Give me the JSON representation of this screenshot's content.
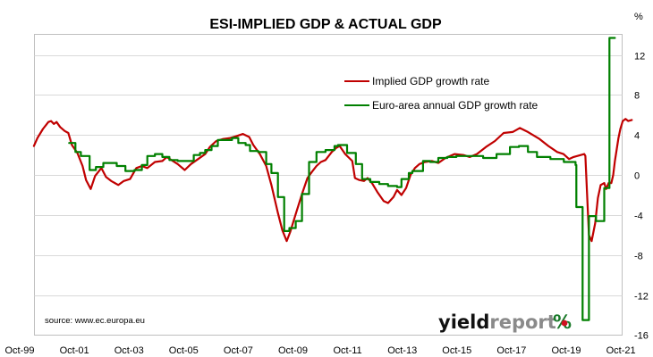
{
  "chart_data": {
    "type": "line",
    "title": "ESI-IMPLIED GDP & ACTUAL GDP",
    "ylabel": "%",
    "xlabel": "",
    "ylim": [
      -16,
      16
    ],
    "yticks": [
      12,
      8,
      4,
      0,
      -4,
      -8,
      -12,
      -16
    ],
    "ytick_labels": [
      "12",
      "8",
      "4",
      "0",
      "-4",
      "-8",
      "-12",
      "-16"
    ],
    "y_axis_side": "right",
    "x_tick_labels": [
      "Oct-99",
      "Oct-01",
      "Oct-03",
      "Oct-05",
      "Oct-07",
      "Oct-09",
      "Oct-11",
      "Oct-13",
      "Oct-15",
      "Oct-17",
      "Oct-19",
      "Oct-21"
    ],
    "x_tick_years": [
      1999.75,
      2001.75,
      2003.75,
      2005.75,
      2007.75,
      2009.75,
      2011.75,
      2013.75,
      2015.75,
      2017.75,
      2019.75,
      2021.75
    ],
    "xlim": [
      2000.27,
      2021.8
    ],
    "grid": true,
    "legend_placement": "top-center",
    "annotations": [
      "source: www.ec.europa.eu"
    ],
    "series": [
      {
        "name": "Implied GDP growth rate",
        "color": "#c00000",
        "points": [
          [
            2000.27,
            2.9
          ],
          [
            2000.4,
            3.7
          ],
          [
            2000.6,
            4.6
          ],
          [
            2000.8,
            5.3
          ],
          [
            2000.9,
            5.4
          ],
          [
            2001.0,
            5.1
          ],
          [
            2001.1,
            5.3
          ],
          [
            2001.23,
            4.8
          ],
          [
            2001.4,
            4.4
          ],
          [
            2001.53,
            4.2
          ],
          [
            2001.66,
            3.0
          ],
          [
            2001.86,
            2.2
          ],
          [
            2002.05,
            0.9
          ],
          [
            2002.18,
            -0.5
          ],
          [
            2002.35,
            -1.4
          ],
          [
            2002.51,
            -0.1
          ],
          [
            2002.74,
            0.7
          ],
          [
            2002.91,
            -0.2
          ],
          [
            2003.1,
            -0.6
          ],
          [
            2003.36,
            -1.0
          ],
          [
            2003.56,
            -0.6
          ],
          [
            2003.79,
            -0.4
          ],
          [
            2004.02,
            0.7
          ],
          [
            2004.22,
            0.9
          ],
          [
            2004.42,
            0.7
          ],
          [
            2004.7,
            1.3
          ],
          [
            2004.97,
            1.4
          ],
          [
            2005.13,
            1.8
          ],
          [
            2005.3,
            1.5
          ],
          [
            2005.53,
            1.1
          ],
          [
            2005.79,
            0.5
          ],
          [
            2006.02,
            1.1
          ],
          [
            2006.28,
            1.6
          ],
          [
            2006.54,
            2.1
          ],
          [
            2006.71,
            2.8
          ],
          [
            2006.94,
            3.4
          ],
          [
            2007.2,
            3.6
          ],
          [
            2007.46,
            3.7
          ],
          [
            2007.69,
            3.9
          ],
          [
            2007.92,
            4.1
          ],
          [
            2008.15,
            3.8
          ],
          [
            2008.3,
            3.0
          ],
          [
            2008.54,
            2.1
          ],
          [
            2008.77,
            0.9
          ],
          [
            2008.96,
            -1.0
          ],
          [
            2009.2,
            -3.8
          ],
          [
            2009.36,
            -5.5
          ],
          [
            2009.52,
            -6.6
          ],
          [
            2009.65,
            -5.7
          ],
          [
            2009.85,
            -3.9
          ],
          [
            2010.08,
            -1.9
          ],
          [
            2010.28,
            -0.3
          ],
          [
            2010.44,
            0.3
          ],
          [
            2010.61,
            0.9
          ],
          [
            2010.77,
            1.3
          ],
          [
            2010.94,
            1.5
          ],
          [
            2011.17,
            2.3
          ],
          [
            2011.33,
            2.7
          ],
          [
            2011.46,
            2.9
          ],
          [
            2011.66,
            2.1
          ],
          [
            2011.92,
            1.4
          ],
          [
            2012.02,
            -0.3
          ],
          [
            2012.18,
            -0.5
          ],
          [
            2012.35,
            -0.6
          ],
          [
            2012.48,
            -0.3
          ],
          [
            2012.64,
            -0.8
          ],
          [
            2012.84,
            -1.7
          ],
          [
            2013.07,
            -2.6
          ],
          [
            2013.23,
            -2.8
          ],
          [
            2013.43,
            -2.2
          ],
          [
            2013.56,
            -1.5
          ],
          [
            2013.72,
            -2.0
          ],
          [
            2013.89,
            -1.3
          ],
          [
            2014.05,
            0.0
          ],
          [
            2014.21,
            0.7
          ],
          [
            2014.38,
            1.1
          ],
          [
            2014.58,
            1.3
          ],
          [
            2014.84,
            1.4
          ],
          [
            2015.07,
            1.2
          ],
          [
            2015.33,
            1.7
          ],
          [
            2015.66,
            2.1
          ],
          [
            2015.99,
            2.0
          ],
          [
            2016.22,
            1.8
          ],
          [
            2016.48,
            2.1
          ],
          [
            2016.81,
            2.8
          ],
          [
            2017.14,
            3.4
          ],
          [
            2017.46,
            4.2
          ],
          [
            2017.79,
            4.3
          ],
          [
            2018.05,
            4.7
          ],
          [
            2018.35,
            4.3
          ],
          [
            2018.77,
            3.6
          ],
          [
            2019.1,
            2.9
          ],
          [
            2019.42,
            2.3
          ],
          [
            2019.65,
            2.1
          ],
          [
            2019.85,
            1.6
          ],
          [
            2020.02,
            1.8
          ],
          [
            2020.41,
            2.1
          ],
          [
            2020.45,
            1.9
          ],
          [
            2020.51,
            -1.7
          ],
          [
            2020.58,
            -6.0
          ],
          [
            2020.68,
            -6.6
          ],
          [
            2020.81,
            -4.8
          ],
          [
            2020.91,
            -2.3
          ],
          [
            2021.01,
            -1.0
          ],
          [
            2021.14,
            -0.8
          ],
          [
            2021.21,
            -1.4
          ],
          [
            2021.3,
            -0.8
          ],
          [
            2021.4,
            -0.8
          ],
          [
            2021.47,
            0.0
          ],
          [
            2021.53,
            1.4
          ],
          [
            2021.66,
            3.7
          ],
          [
            2021.73,
            4.6
          ],
          [
            2021.82,
            5.4
          ],
          [
            2021.92,
            5.6
          ],
          [
            2022.02,
            5.4
          ],
          [
            2022.15,
            5.5
          ]
        ]
      },
      {
        "name": "Euro-area annual GDP growth rate",
        "color": "#008000",
        "step": true,
        "points": [
          [
            2001.56,
            3.2
          ],
          [
            2001.79,
            2.3
          ],
          [
            2001.99,
            1.9
          ],
          [
            2002.31,
            0.5
          ],
          [
            2002.54,
            0.8
          ],
          [
            2002.81,
            1.2
          ],
          [
            2003.3,
            0.9
          ],
          [
            2003.62,
            0.4
          ],
          [
            2003.95,
            0.5
          ],
          [
            2004.22,
            1.0
          ],
          [
            2004.42,
            1.9
          ],
          [
            2004.7,
            2.1
          ],
          [
            2004.97,
            1.8
          ],
          [
            2005.23,
            1.5
          ],
          [
            2005.53,
            1.4
          ],
          [
            2005.95,
            1.4
          ],
          [
            2006.12,
            2.0
          ],
          [
            2006.35,
            2.2
          ],
          [
            2006.54,
            2.5
          ],
          [
            2006.77,
            2.9
          ],
          [
            2007.0,
            3.5
          ],
          [
            2007.26,
            3.5
          ],
          [
            2007.52,
            3.7
          ],
          [
            2007.75,
            3.2
          ],
          [
            2008.02,
            3.0
          ],
          [
            2008.18,
            2.4
          ],
          [
            2008.48,
            2.3
          ],
          [
            2008.77,
            1.1
          ],
          [
            2008.96,
            0.2
          ],
          [
            2009.2,
            -2.2
          ],
          [
            2009.43,
            -5.6
          ],
          [
            2009.62,
            -5.3
          ],
          [
            2009.85,
            -4.6
          ],
          [
            2010.08,
            -1.9
          ],
          [
            2010.34,
            1.3
          ],
          [
            2010.61,
            2.3
          ],
          [
            2010.94,
            2.5
          ],
          [
            2011.27,
            2.9
          ],
          [
            2011.4,
            3.0
          ],
          [
            2011.5,
            3.0
          ],
          [
            2011.73,
            2.2
          ],
          [
            2012.05,
            1.1
          ],
          [
            2012.28,
            -0.4
          ],
          [
            2012.58,
            -0.7
          ],
          [
            2012.91,
            -0.9
          ],
          [
            2013.23,
            -1.1
          ],
          [
            2013.56,
            -1.2
          ],
          [
            2013.72,
            -0.4
          ],
          [
            2013.99,
            0.2
          ],
          [
            2014.12,
            0.4
          ],
          [
            2014.51,
            1.4
          ],
          [
            2014.77,
            1.3
          ],
          [
            2015.07,
            1.7
          ],
          [
            2015.4,
            1.8
          ],
          [
            2015.73,
            1.9
          ],
          [
            2016.22,
            1.9
          ],
          [
            2016.71,
            1.7
          ],
          [
            2017.2,
            2.1
          ],
          [
            2017.69,
            2.8
          ],
          [
            2018.02,
            2.9
          ],
          [
            2018.35,
            2.3
          ],
          [
            2018.68,
            1.8
          ],
          [
            2019.17,
            1.6
          ],
          [
            2019.42,
            1.6
          ],
          [
            2019.66,
            1.3
          ],
          [
            2019.89,
            1.3
          ],
          [
            2020.09,
            1.0
          ],
          [
            2020.12,
            -3.2
          ],
          [
            2020.32,
            -3.2
          ],
          [
            2020.35,
            -14.5
          ],
          [
            2020.55,
            -14.5
          ],
          [
            2020.58,
            -4.1
          ],
          [
            2020.78,
            -4.1
          ],
          [
            2020.84,
            -4.6
          ],
          [
            2021.04,
            -4.6
          ],
          [
            2021.14,
            -1.3
          ],
          [
            2021.3,
            -1.3
          ],
          [
            2021.33,
            13.7
          ],
          [
            2021.53,
            13.7
          ]
        ]
      }
    ]
  }
}
